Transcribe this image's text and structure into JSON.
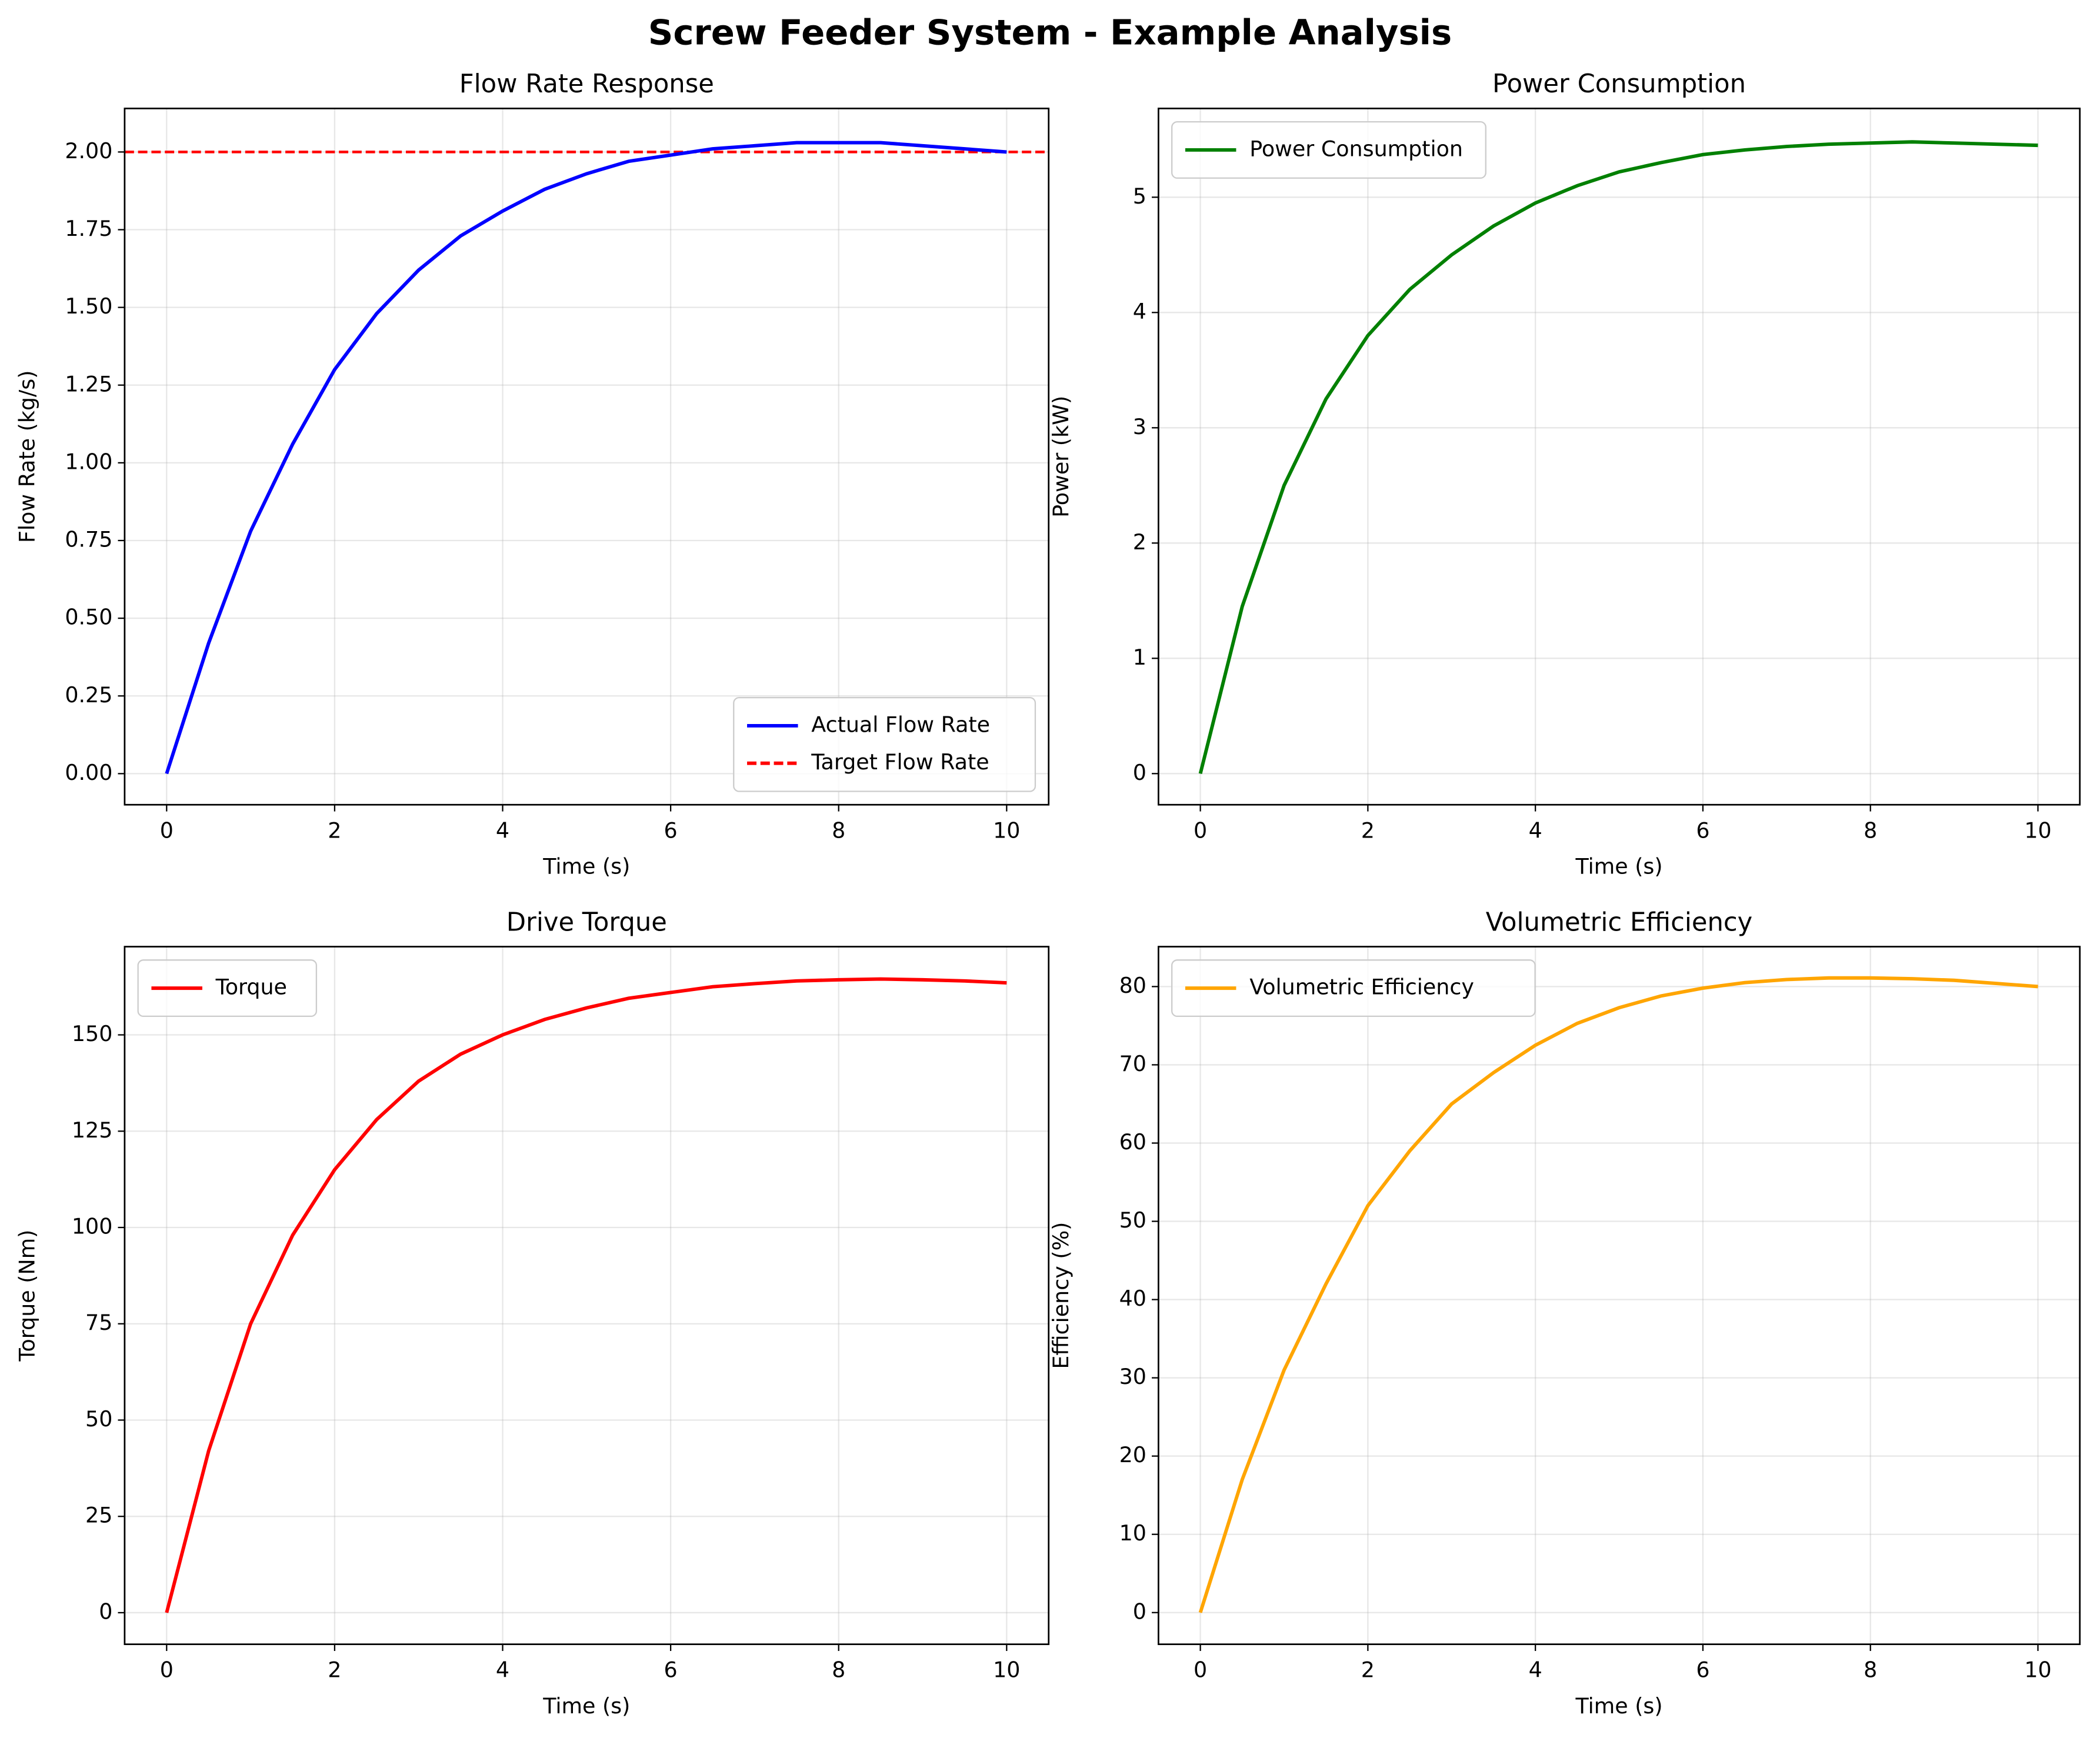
{
  "title": "Screw Feeder System - Example Analysis",
  "chart_data": [
    {
      "type": "line",
      "title": "Flow Rate Response",
      "xlabel": "Time (s)",
      "ylabel": "Flow Rate (kg/s)",
      "x": [
        0,
        0.5,
        1,
        1.5,
        2,
        2.5,
        3,
        3.5,
        4,
        4.5,
        5,
        5.5,
        6,
        6.5,
        7,
        7.5,
        8,
        8.5,
        9,
        9.5,
        10
      ],
      "series": [
        {
          "name": "Actual Flow Rate",
          "color": "#0000ff",
          "values": [
            0,
            0.42,
            0.78,
            1.06,
            1.3,
            1.48,
            1.62,
            1.73,
            1.81,
            1.88,
            1.93,
            1.97,
            1.99,
            2.01,
            2.02,
            2.03,
            2.03,
            2.03,
            2.02,
            2.01,
            2.0
          ]
        }
      ],
      "hlines": [
        {
          "name": "Target Flow Rate",
          "color": "#ff0000",
          "value": 2,
          "dashed": true
        }
      ],
      "xlim": [
        -0.5,
        10.5
      ],
      "xticks": [
        0,
        2,
        4,
        6,
        8,
        10
      ],
      "ylim": [
        -0.1,
        2.14
      ],
      "yticks": [
        {
          "value": 0,
          "label": "0.00"
        },
        {
          "value": 0.25,
          "label": "0.25"
        },
        {
          "value": 0.5,
          "label": "0.50"
        },
        {
          "value": 0.75,
          "label": "0.75"
        },
        {
          "value": 1,
          "label": "1.00"
        },
        {
          "value": 1.25,
          "label": "1.25"
        },
        {
          "value": 1.5,
          "label": "1.50"
        },
        {
          "value": 1.75,
          "label": "1.75"
        },
        {
          "value": 2,
          "label": "2.00"
        }
      ],
      "grid": true,
      "legend": "lower right"
    },
    {
      "type": "line",
      "title": "Power Consumption",
      "xlabel": "Time (s)",
      "ylabel": "Power (kW)",
      "x": [
        0,
        0.5,
        1,
        1.5,
        2,
        2.5,
        3,
        3.5,
        4,
        4.5,
        5,
        5.5,
        6,
        6.5,
        7,
        7.5,
        8,
        8.5,
        9,
        9.5,
        10
      ],
      "series": [
        {
          "name": "Power Consumption",
          "color": "#008000",
          "values": [
            0,
            1.45,
            2.5,
            3.25,
            3.8,
            4.2,
            4.5,
            4.75,
            4.95,
            5.1,
            5.22,
            5.3,
            5.37,
            5.41,
            5.44,
            5.46,
            5.47,
            5.48,
            5.47,
            5.46,
            5.45
          ]
        }
      ],
      "xlim": [
        -0.5,
        10.5
      ],
      "xticks": [
        0,
        2,
        4,
        6,
        8,
        10
      ],
      "ylim": [
        -0.27,
        5.77
      ],
      "yticks": [
        0,
        1,
        2,
        3,
        4,
        5
      ],
      "grid": true,
      "legend": "upper left"
    },
    {
      "type": "line",
      "title": "Drive Torque",
      "xlabel": "Time (s)",
      "ylabel": "Torque (Nm)",
      "x": [
        0,
        0.5,
        1,
        1.5,
        2,
        2.5,
        3,
        3.5,
        4,
        4.5,
        5,
        5.5,
        6,
        6.5,
        7,
        7.5,
        8,
        8.5,
        9,
        9.5,
        10
      ],
      "series": [
        {
          "name": "Torque",
          "color": "#ff0000",
          "values": [
            0,
            42,
            75,
            98,
            115,
            128,
            138,
            145,
            150,
            154,
            157,
            159.5,
            161,
            162.5,
            163.3,
            164,
            164.3,
            164.5,
            164.3,
            164,
            163.5
          ]
        }
      ],
      "xlim": [
        -0.5,
        10.5
      ],
      "xticks": [
        0,
        2,
        4,
        6,
        8,
        10
      ],
      "ylim": [
        -8.2,
        172.9
      ],
      "yticks": [
        0,
        25,
        50,
        75,
        100,
        125,
        150
      ],
      "grid": true,
      "legend": "upper left"
    },
    {
      "type": "line",
      "title": "Volumetric Efficiency",
      "xlabel": "Time (s)",
      "ylabel": "Efficiency (%)",
      "x": [
        0,
        0.5,
        1,
        1.5,
        2,
        2.5,
        3,
        3.5,
        4,
        4.5,
        5,
        5.5,
        6,
        6.5,
        7,
        7.5,
        8,
        8.5,
        9,
        9.5,
        10
      ],
      "series": [
        {
          "name": "Volumetric Efficiency",
          "color": "#ffa500",
          "values": [
            0,
            17,
            31,
            42,
            52,
            59,
            65,
            69,
            72.5,
            75.3,
            77.3,
            78.8,
            79.8,
            80.5,
            80.9,
            81.1,
            81.1,
            81,
            80.8,
            80.4,
            80
          ]
        }
      ],
      "xlim": [
        -0.5,
        10.5
      ],
      "xticks": [
        0,
        2,
        4,
        6,
        8,
        10
      ],
      "ylim": [
        -4.05,
        85.1
      ],
      "yticks": [
        0,
        10,
        20,
        30,
        40,
        50,
        60,
        70,
        80
      ],
      "grid": true,
      "legend": "upper left"
    }
  ]
}
